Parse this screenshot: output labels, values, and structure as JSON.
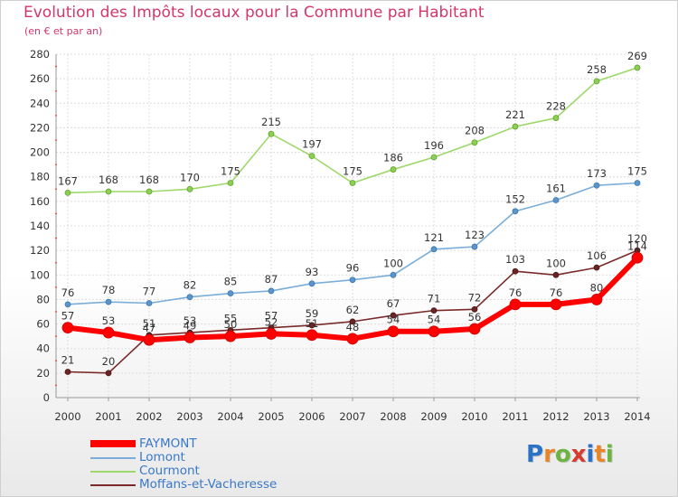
{
  "title": "Evolution des Impôts locaux pour la Commune par Habitant",
  "subtitle": "(en € et par an)",
  "brand": {
    "letters": [
      "P",
      "r",
      "o",
      "x",
      "i",
      "t",
      "i"
    ],
    "colors": [
      "#2a72c8",
      "#e8852b",
      "#6cb33f",
      "#d63b2f",
      "#2a72c8",
      "#e8852b",
      "#6cb33f"
    ]
  },
  "colors": {
    "FAYMONT": "#ff0000",
    "Lomont": "#7aaed8",
    "Courmont": "#9ed86a",
    "Moffans-et-Vacheresse": "#7a2a2a",
    "axis_text": "#333333",
    "grid": "#dcdcdc",
    "title": "#d4366a",
    "legend_text": "#3a78c9"
  },
  "chart_data": {
    "type": "line",
    "title": "Evolution des Impôts locaux pour la Commune par Habitant",
    "subtitle": "(en € et par an)",
    "xlabel": "",
    "ylabel": "",
    "ylim": [
      0,
      280
    ],
    "yticks": [
      0,
      20,
      40,
      60,
      80,
      100,
      120,
      140,
      160,
      180,
      200,
      220,
      240,
      260,
      280
    ],
    "grid": true,
    "legend_position": "bottom-left",
    "categories": [
      "2000",
      "2001",
      "2002",
      "2003",
      "2004",
      "2005",
      "2006",
      "2007",
      "2008",
      "2009",
      "2010",
      "2011",
      "2012",
      "2013",
      "2014"
    ],
    "series": [
      {
        "name": "FAYMONT",
        "values": [
          57,
          53,
          47,
          49,
          50,
          52,
          51,
          48,
          54,
          54,
          56,
          76,
          76,
          80,
          114
        ],
        "labels": [
          "57",
          "53",
          "47",
          "49",
          "50",
          "52",
          "51",
          "48",
          "54",
          "54",
          "56",
          "76",
          "76",
          "80",
          "114"
        ]
      },
      {
        "name": "Lomont",
        "values": [
          76,
          78,
          77,
          82,
          85,
          87,
          93,
          96,
          100,
          121,
          123,
          152,
          161,
          173,
          175
        ],
        "labels": [
          "76",
          "78",
          "77",
          "82",
          "85",
          "87",
          "93",
          "96",
          "100",
          "121",
          "123",
          "152",
          "161",
          "173",
          "175"
        ]
      },
      {
        "name": "Courmont",
        "values": [
          167,
          168,
          168,
          170,
          175,
          215,
          197,
          175,
          186,
          196,
          208,
          221,
          228,
          258,
          269
        ],
        "labels": [
          "167",
          "168",
          "168",
          "170",
          "175",
          "215",
          "197",
          "175",
          "186",
          "196",
          "208",
          "221",
          "228",
          "258",
          "269"
        ]
      },
      {
        "name": "Moffans-et-Vacheresse",
        "values": [
          21,
          20,
          51,
          53,
          55,
          57,
          59,
          62,
          67,
          71,
          72,
          103,
          100,
          106,
          120
        ],
        "labels": [
          "21",
          "20",
          "51",
          "53",
          "55",
          "57",
          "59",
          "62",
          "67",
          "71",
          "72",
          "103",
          "100",
          "106",
          "120"
        ]
      }
    ]
  }
}
